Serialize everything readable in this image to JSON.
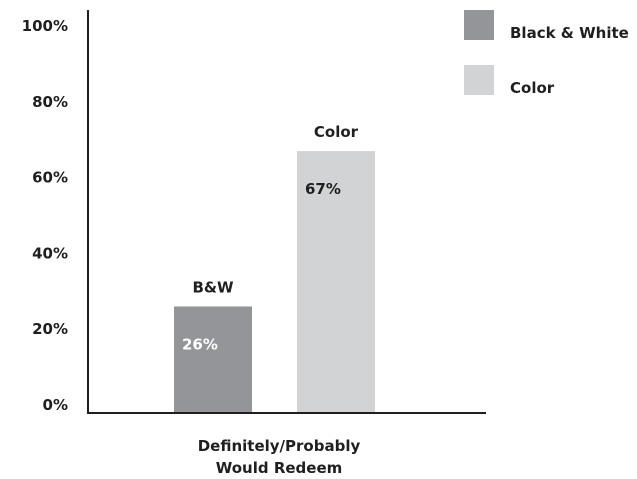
{
  "chart_data": {
    "type": "bar",
    "categories": [
      "Definitely/Probably Would Redeem"
    ],
    "xlabel_lines": [
      "Definitely/Probably",
      "Would Redeem"
    ],
    "ylabel": "",
    "ylim": [
      0,
      100
    ],
    "yticks": [
      0,
      20,
      40,
      60,
      80,
      100
    ],
    "ytick_labels": [
      "0%",
      "20%",
      "40%",
      "60%",
      "80%",
      "100%"
    ],
    "grid": false,
    "legend_position": "top-right",
    "series": [
      {
        "name": "Black & White",
        "values": [
          26
        ],
        "top_label": "B&W",
        "value_label": "26%",
        "color": "#939598",
        "value_label_color": "#ffffff"
      },
      {
        "name": "Color",
        "values": [
          67
        ],
        "top_label": "Color",
        "value_label": "67%",
        "color": "#d1d3d4",
        "value_label_color": "#1f1f1f"
      }
    ],
    "axis_color": "#1f1f1f"
  }
}
